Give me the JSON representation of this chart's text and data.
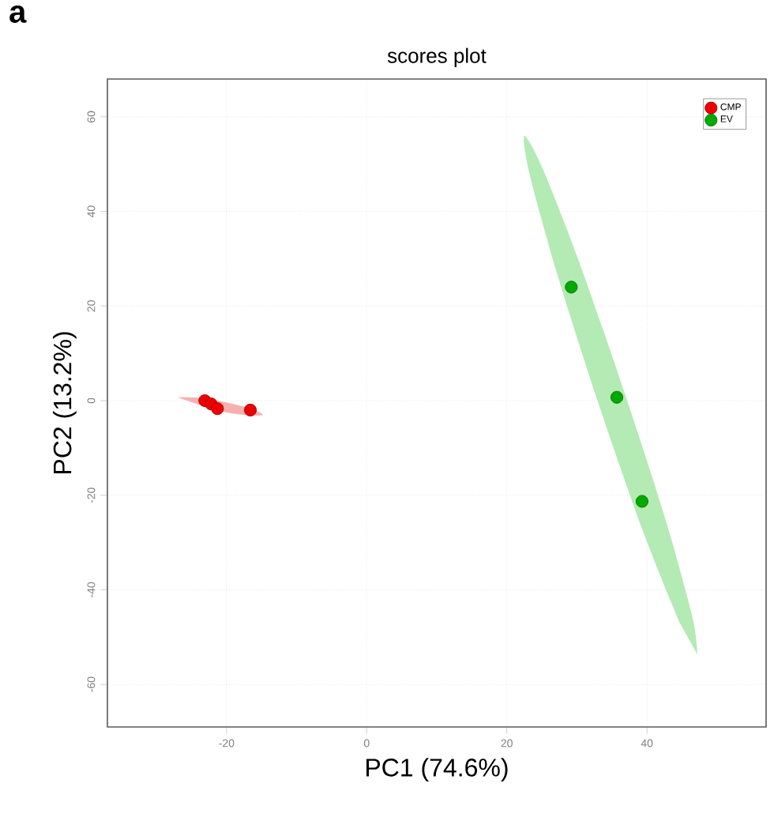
{
  "chart_data": {
    "type": "scatter",
    "title": "scores plot",
    "xlabel": "PC1 (74.6%)",
    "ylabel": "PC2 (13.2%)",
    "annotations": [
      "a"
    ],
    "xlim": [
      -37,
      57
    ],
    "ylim": [
      -69,
      68
    ],
    "xticks": [
      -20,
      0,
      20,
      40
    ],
    "yticks": [
      -60,
      -40,
      -20,
      0,
      20,
      40,
      60
    ],
    "grid": true,
    "legend": "top right",
    "series": [
      {
        "type": "area",
        "marker": "none",
        "color": "#f6b0b0",
        "x": [
          -27,
          -24,
          -21,
          -17,
          -14.8,
          -17.5,
          -21,
          -24.5
        ],
        "values": [
          0.7,
          0.6,
          -0.1,
          -1.5,
          -3,
          -3,
          -2.2,
          -0.6
        ]
      },
      {
        "type": "area",
        "marker": "none",
        "color": "#b4eab4",
        "x": [
          47.2,
          46.5,
          42.7,
          36.7,
          30.3,
          25.1,
          22.5,
          23.2,
          27.0,
          32.9,
          39.3,
          44.6
        ],
        "values": [
          -53.7,
          -45.9,
          -25.4,
          2.1,
          29.4,
          49.1,
          56,
          48.2,
          27.7,
          0.2,
          -27.1,
          -46.8
        ]
      },
      {
        "name": "CMP",
        "marker": "circle",
        "color": "#ee0000",
        "x": [
          -23.1,
          -22.2,
          -21.3,
          -16.6
        ],
        "values": [
          0,
          -0.7,
          -1.7,
          -2
        ]
      },
      {
        "name": "EV",
        "marker": "circle",
        "color": "#00aa00",
        "x": [
          29.2,
          35.7,
          39.3
        ],
        "values": [
          24,
          0.7,
          -21.3
        ]
      }
    ]
  }
}
